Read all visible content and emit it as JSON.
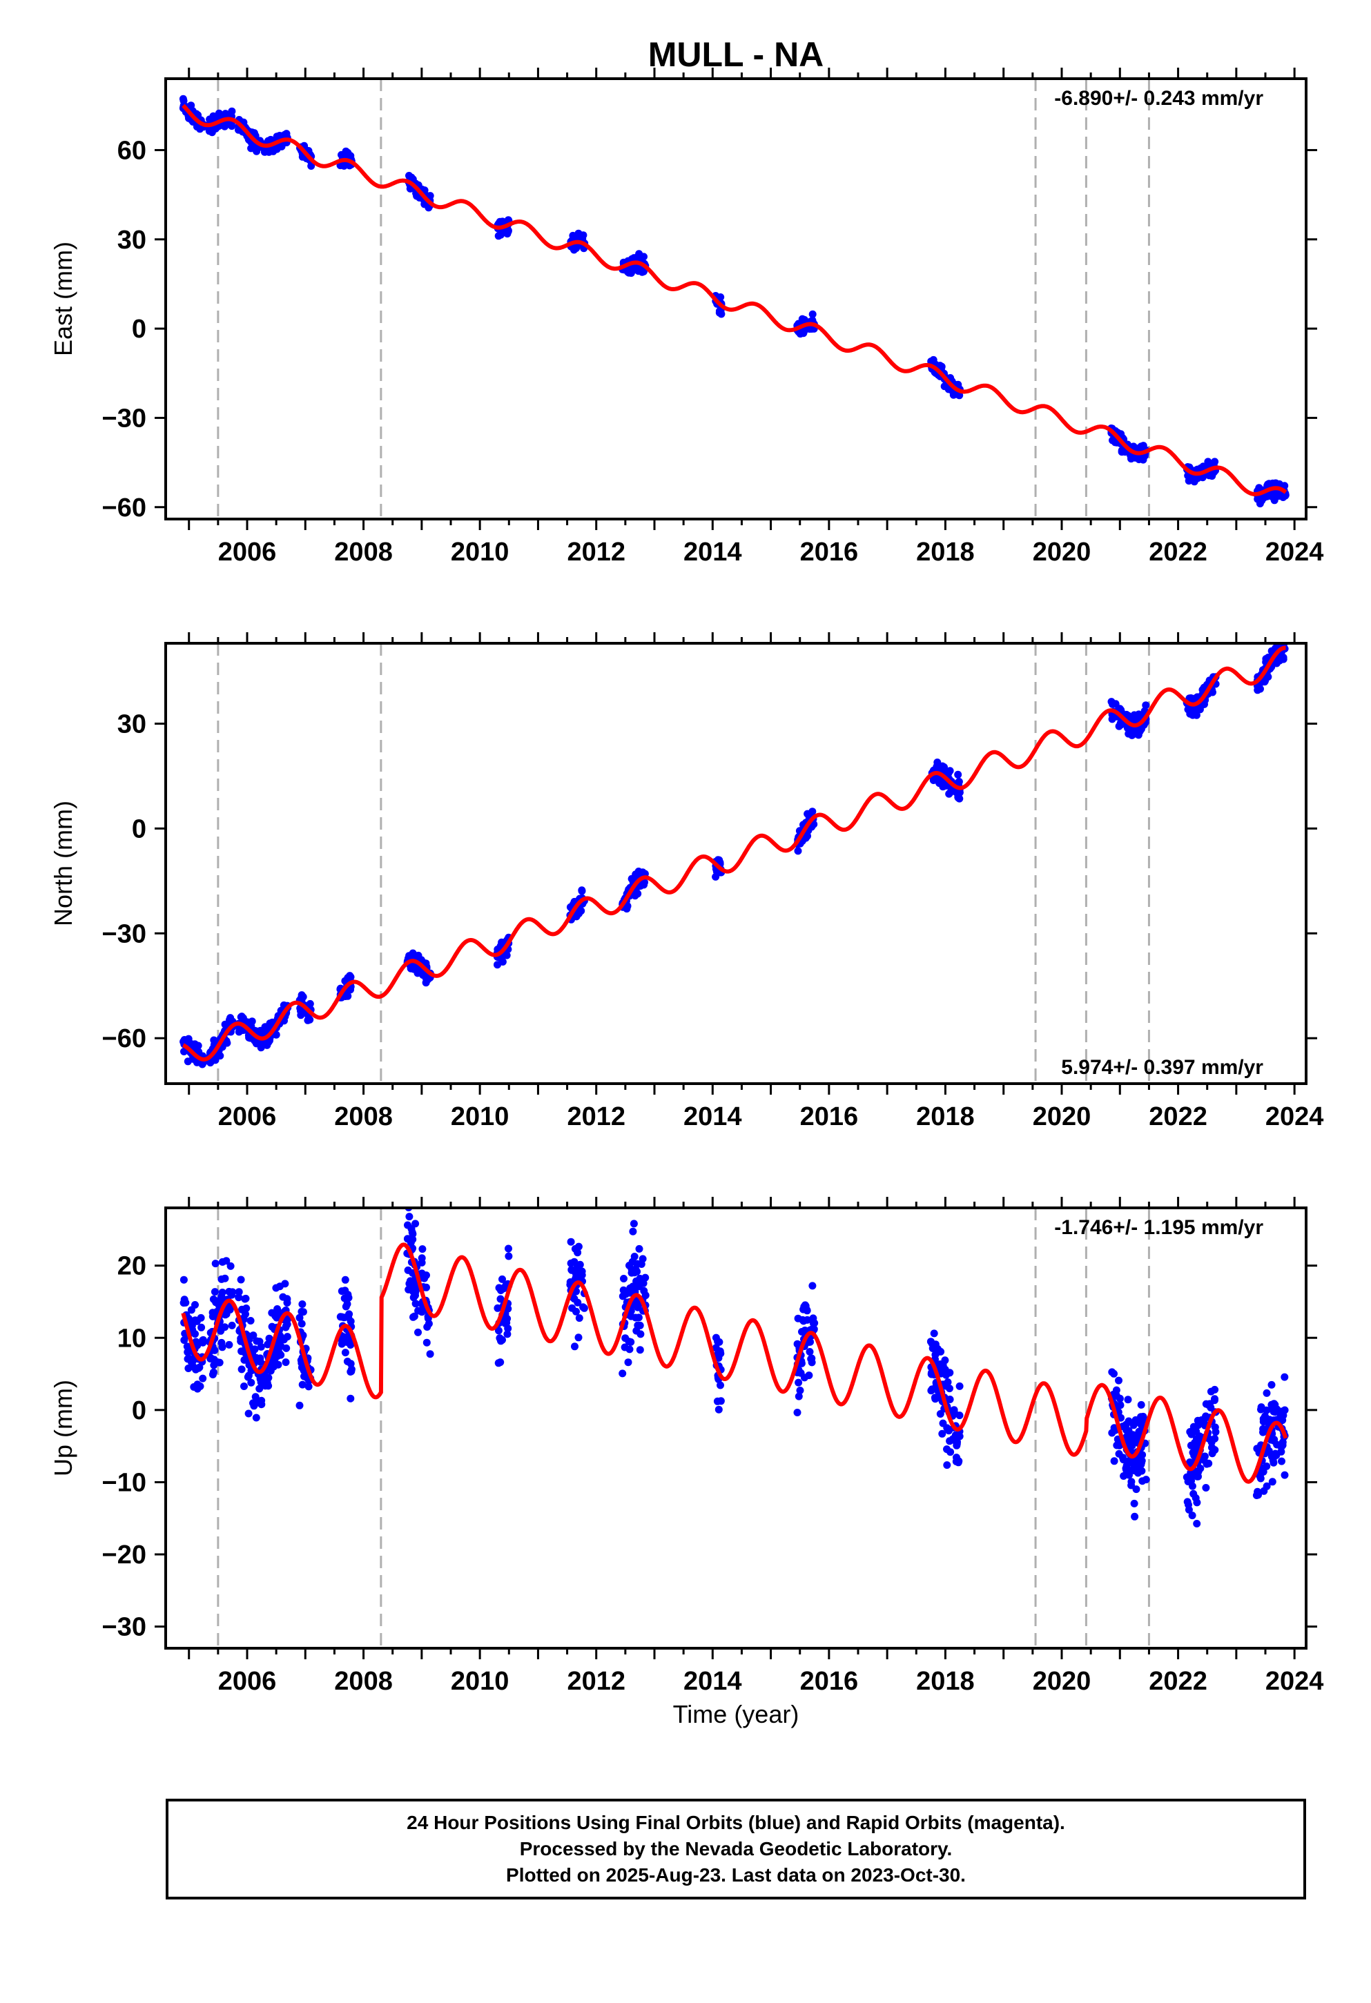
{
  "title": "MULL - NA",
  "xlabel": "Time (year)",
  "footer": {
    "line1": "24 Hour Positions Using Final Orbits (blue) and Rapid Orbits (magenta).",
    "line2": "Processed by the Nevada Geodetic Laboratory.",
    "line3": "Plotted on 2025-Aug-23. Last data on 2023-Oct-30."
  },
  "colors": {
    "data": "#0000ff",
    "model": "#ff0000",
    "steps": "#b0b0b0",
    "frame": "#000000"
  },
  "chart_data": {
    "type": "scatter",
    "xlim": [
      2004.6,
      2024.2
    ],
    "xticks": [
      "2006",
      "2008",
      "2010",
      "2012",
      "2014",
      "2016",
      "2018",
      "2020",
      "2022",
      "2024"
    ],
    "xtick_values": [
      2006,
      2008,
      2010,
      2012,
      2014,
      2016,
      2018,
      2020,
      2022,
      2024
    ],
    "step_lines": [
      2005.5,
      2008.3,
      2019.55,
      2020.42,
      2021.5
    ],
    "data_epochs": [
      [
        2004.9,
        2005.25
      ],
      [
        2005.35,
        2005.75
      ],
      [
        2005.85,
        2006.25
      ],
      [
        2006.3,
        2006.7
      ],
      [
        2006.9,
        2007.1
      ],
      [
        2007.6,
        2007.8
      ],
      [
        2008.75,
        2009.15
      ],
      [
        2010.3,
        2010.5
      ],
      [
        2011.55,
        2011.8
      ],
      [
        2012.45,
        2012.85
      ],
      [
        2014.05,
        2014.15
      ],
      [
        2015.45,
        2015.75
      ],
      [
        2017.75,
        2018.25
      ],
      [
        2020.85,
        2021.45
      ],
      [
        2022.15,
        2022.65
      ],
      [
        2023.35,
        2023.85
      ]
    ],
    "panels": [
      {
        "ylabel": "East (mm)",
        "ylim": [
          -64,
          84
        ],
        "yticks": [
          "60",
          "30",
          "0",
          "−30",
          "−60"
        ],
        "ytick_values": [
          60,
          30,
          0,
          -30,
          -60
        ],
        "rate_label": "-6.890+/- 0.243 mm/yr",
        "rate_position": "top-right",
        "rate": -6.89,
        "ref_year": 2015.5,
        "ref_value": 0.5,
        "annual_amplitude": 2.5,
        "annual_phase": 0.5,
        "scatter": 1.8,
        "steps": []
      },
      {
        "ylabel": "North (mm)",
        "ylim": [
          -73,
          53
        ],
        "yticks": [
          "30",
          "0",
          "−30",
          "−60"
        ],
        "ytick_values": [
          30,
          0,
          -30,
          -60
        ],
        "rate_label": "5.974+/- 0.397 mm/yr",
        "rate_position": "bottom-right",
        "rate": 5.974,
        "ref_year": 2015.5,
        "ref_value": -1.5,
        "annual_amplitude": 3.5,
        "annual_phase": 0.45,
        "scatter": 2.0,
        "steps": []
      },
      {
        "ylabel": "Up (mm)",
        "ylim": [
          -33,
          28
        ],
        "yticks": [
          "20",
          "10",
          "0",
          "−10",
          "−20",
          "−30"
        ],
        "ytick_values": [
          20,
          10,
          0,
          -10,
          -20,
          -30
        ],
        "rate_label": "-1.746+/- 1.195 mm/yr",
        "rate_position": "top-right",
        "rate": -1.746,
        "ref_year": 2015.5,
        "ref_value": 1.5,
        "annual_amplitude": 4.5,
        "annual_phase": 0.55,
        "scatter": 4.5,
        "steps": [
          {
            "year": 2008.3,
            "offset": 13
          },
          {
            "year": 2020.42,
            "offset": 1.5
          }
        ]
      }
    ]
  }
}
